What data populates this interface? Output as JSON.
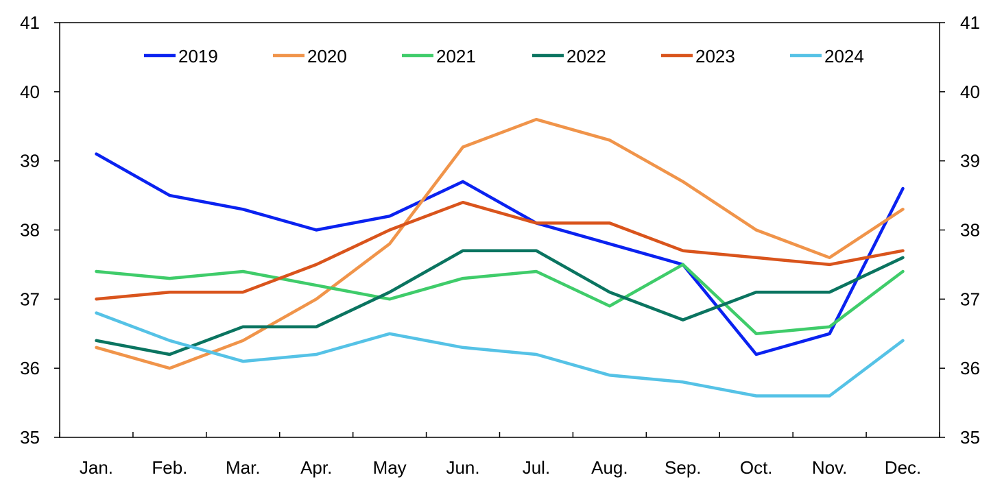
{
  "chart_data": {
    "type": "line",
    "title": "",
    "xlabel": "",
    "ylabel": "",
    "categories": [
      "Jan.",
      "Feb.",
      "Mar.",
      "Apr.",
      "May",
      "Jun.",
      "Jul.",
      "Aug.",
      "Sep.",
      "Oct.",
      "Nov.",
      "Dec."
    ],
    "ylim": [
      35,
      41
    ],
    "yticks": [
      "35",
      "36",
      "37",
      "38",
      "39",
      "40",
      "41"
    ],
    "y2ticks": [
      "35",
      "36",
      "37",
      "38",
      "39",
      "40",
      "41"
    ],
    "grid": false,
    "legend_position": "top",
    "series": [
      {
        "name": "2019",
        "color": "#0a22f0",
        "values": [
          39.1,
          38.5,
          38.3,
          38.0,
          38.2,
          38.7,
          38.1,
          37.8,
          37.5,
          36.2,
          36.5,
          38.6
        ]
      },
      {
        "name": "2020",
        "color": "#f0944a",
        "values": [
          36.3,
          36.0,
          36.4,
          37.0,
          37.8,
          39.2,
          39.6,
          39.3,
          38.7,
          38.0,
          37.6,
          38.3
        ]
      },
      {
        "name": "2021",
        "color": "#3fcc6a",
        "values": [
          37.4,
          37.3,
          37.4,
          37.2,
          37.0,
          37.3,
          37.4,
          36.9,
          37.5,
          36.5,
          36.6,
          37.4
        ]
      },
      {
        "name": "2022",
        "color": "#0a7460",
        "values": [
          36.4,
          36.2,
          36.6,
          36.6,
          37.1,
          37.7,
          37.7,
          37.1,
          36.7,
          37.1,
          37.1,
          37.6
        ]
      },
      {
        "name": "2023",
        "color": "#d9541c",
        "values": [
          37.0,
          37.1,
          37.1,
          37.5,
          38.0,
          38.4,
          38.1,
          38.1,
          37.7,
          37.6,
          37.5,
          37.7
        ]
      },
      {
        "name": "2024",
        "color": "#55c2e6",
        "values": [
          36.8,
          36.4,
          36.1,
          36.2,
          36.5,
          36.3,
          36.2,
          35.9,
          35.8,
          35.6,
          35.6,
          36.4
        ]
      }
    ]
  }
}
